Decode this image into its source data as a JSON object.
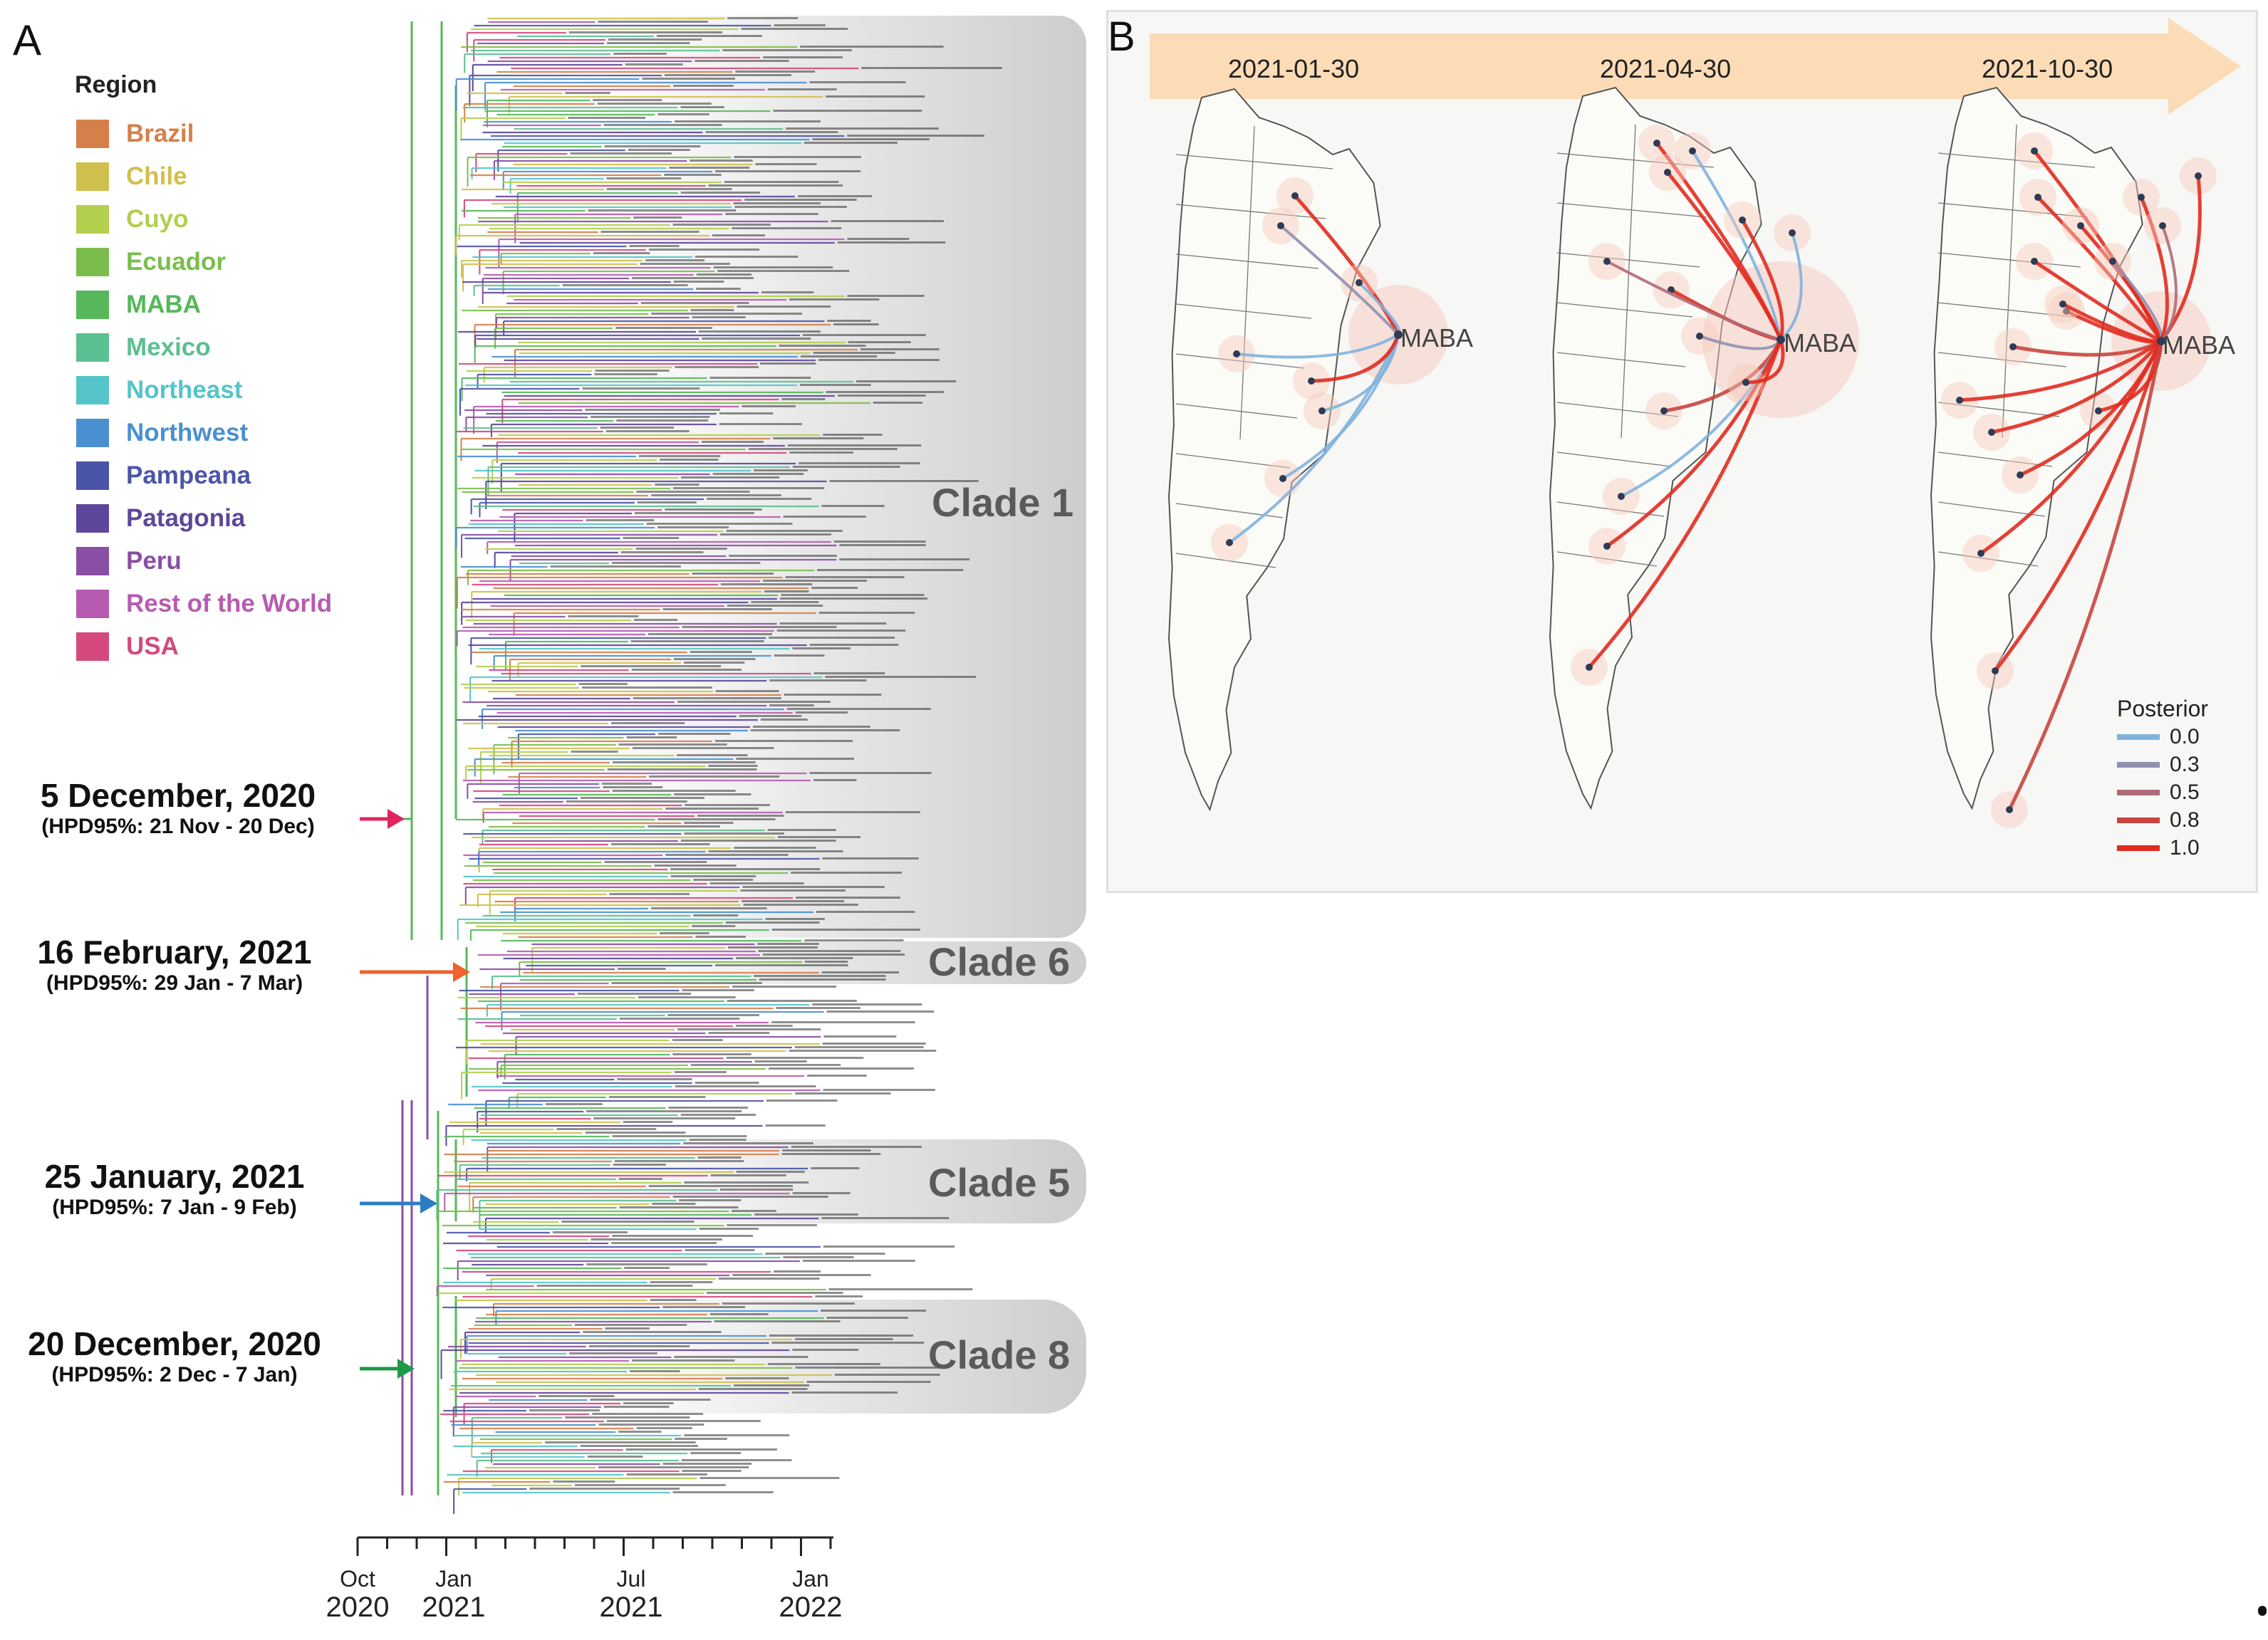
{
  "panel_a": {
    "letter": "A",
    "legend": {
      "title": "Region",
      "items": [
        {
          "label": "Brazil",
          "color": "#d5804a"
        },
        {
          "label": "Chile",
          "color": "#cfc04d"
        },
        {
          "label": "Cuyo",
          "color": "#b3cf4e"
        },
        {
          "label": "Ecuador",
          "color": "#7bbd4d"
        },
        {
          "label": "MABA",
          "color": "#56b85a"
        },
        {
          "label": "Mexico",
          "color": "#5cbf91"
        },
        {
          "label": "Northeast",
          "color": "#55c4c9"
        },
        {
          "label": "Northwest",
          "color": "#4a90d0"
        },
        {
          "label": "Pampeana",
          "color": "#4b55a8"
        },
        {
          "label": "Patagonia",
          "color": "#5e469a"
        },
        {
          "label": "Peru",
          "color": "#8a4ea4"
        },
        {
          "label": "Rest of the World",
          "color": "#b75bb1"
        },
        {
          "label": "USA",
          "color": "#d44a7e"
        }
      ]
    },
    "annotations": [
      {
        "date": "5 December, 2020",
        "hpd": "(HPD95%: 21 Nov - 20 Dec)",
        "arrow_color": "#e0245e"
      },
      {
        "date": "16 February, 2021",
        "hpd": "(HPD95%: 29 Jan - 7 Mar)",
        "arrow_color": "#f0622a"
      },
      {
        "date": "25 January, 2021",
        "hpd": "(HPD95%: 7 Jan - 9 Feb)",
        "arrow_color": "#2b7cc4"
      },
      {
        "date": "20 December, 2020",
        "hpd": "(HPD95%: 2 Dec - 7 Jan)",
        "arrow_color": "#1f9a46"
      }
    ],
    "clades": [
      "Clade 1",
      "Clade 6",
      "Clade 5",
      "Clade 8"
    ],
    "axis": {
      "ticks": [
        {
          "month": "Oct",
          "year": "2020"
        },
        {
          "month": "Jan",
          "year": "2021"
        },
        {
          "month": "Jul",
          "year": "2021"
        },
        {
          "month": "Jan",
          "year": "2022"
        }
      ]
    }
  },
  "panel_b": {
    "letter": "B",
    "dates": [
      "2021-01-30",
      "2021-04-30",
      "2021-10-30"
    ],
    "hub_label": "MABA",
    "posterior": {
      "title": "Posterior",
      "levels": [
        {
          "value": "0.0",
          "color": "#7fb3de"
        },
        {
          "value": "0.3",
          "color": "#8f8fb0"
        },
        {
          "value": "0.5",
          "color": "#b06a78"
        },
        {
          "value": "0.8",
          "color": "#c8453f"
        },
        {
          "value": "1.0",
          "color": "#e12b1f"
        }
      ]
    }
  }
}
